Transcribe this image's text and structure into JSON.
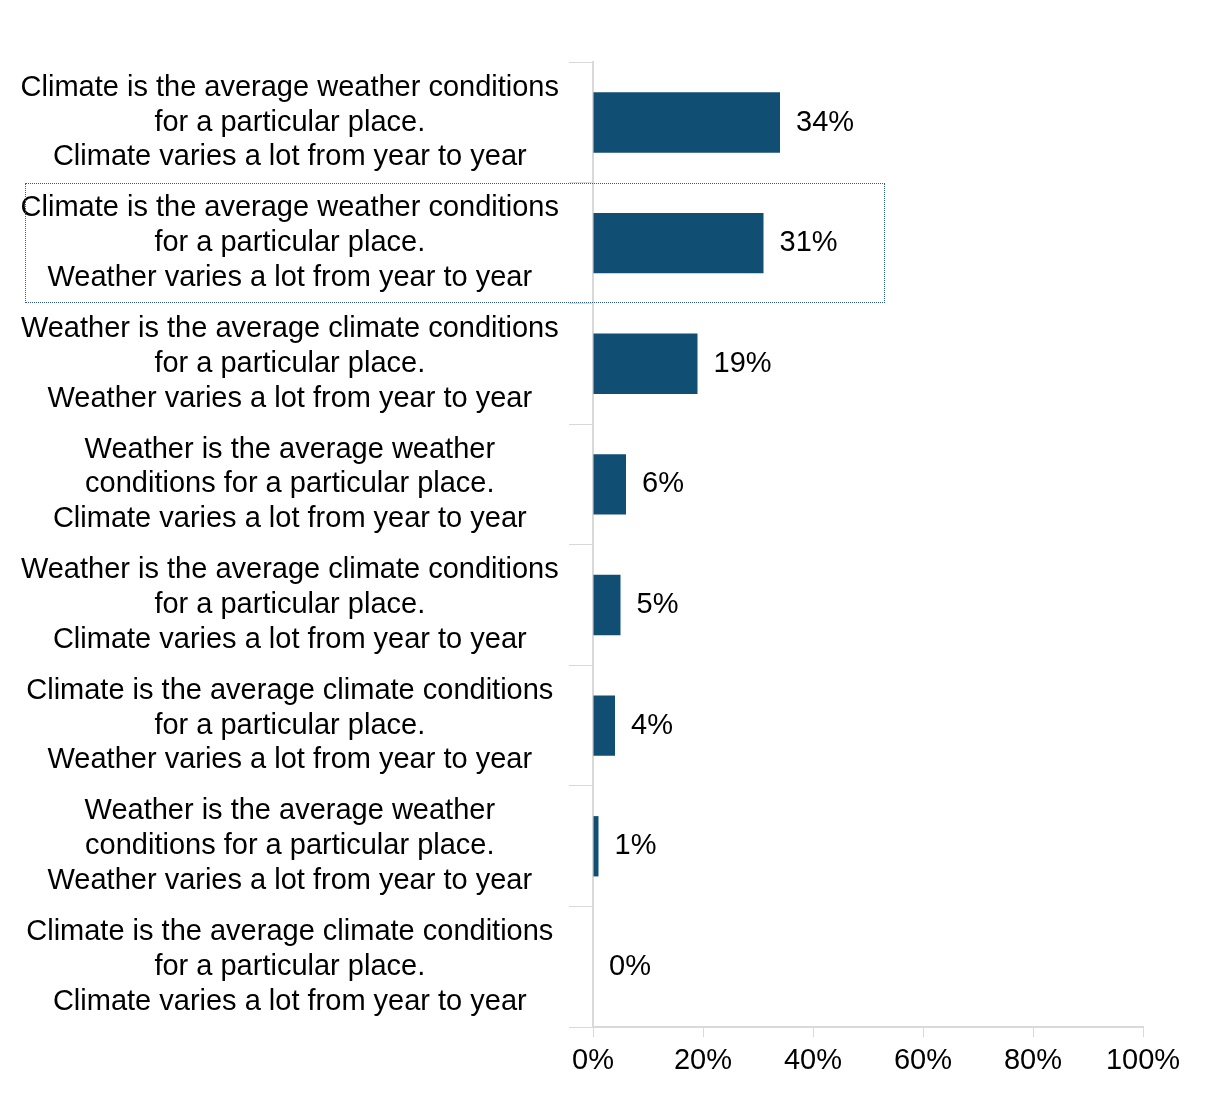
{
  "chart_data": {
    "type": "bar",
    "orientation": "horizontal",
    "categories": [
      "Climate is the average weather conditions for a particular place. Climate varies a lot from year to year",
      "Climate is the average weather conditions for a particular place. Weather varies a lot from year to year",
      "Weather is the average climate conditions for a particular place. Weather varies a lot from year to year",
      "Weather is the average weather conditions for a particular place. Climate varies a lot from year to year",
      "Weather is the average climate conditions for a particular place. Climate varies a lot from year to year",
      "Climate is the average climate conditions for a particular place. Weather varies a lot from year to year",
      "Weather is the average weather conditions for a particular place. Weather varies a lot from year to year",
      "Climate is the average climate conditions for a particular place. Climate varies a lot from year to year"
    ],
    "values": [
      34,
      31,
      19,
      6,
      5,
      4,
      1,
      0
    ],
    "value_labels": [
      "34%",
      "31%",
      "19%",
      "6%",
      "5%",
      "4%",
      "1%",
      "0%"
    ],
    "color": "#114e73",
    "xlim": [
      0,
      100
    ],
    "xticks": [
      {
        "value": 0,
        "label": "0%"
      },
      {
        "value": 20,
        "label": "20%"
      },
      {
        "value": 40,
        "label": "40%"
      },
      {
        "value": 60,
        "label": "60%"
      },
      {
        "value": 80,
        "label": "80%"
      },
      {
        "value": 100,
        "label": "100%"
      }
    ],
    "grid": false,
    "legend": false
  }
}
